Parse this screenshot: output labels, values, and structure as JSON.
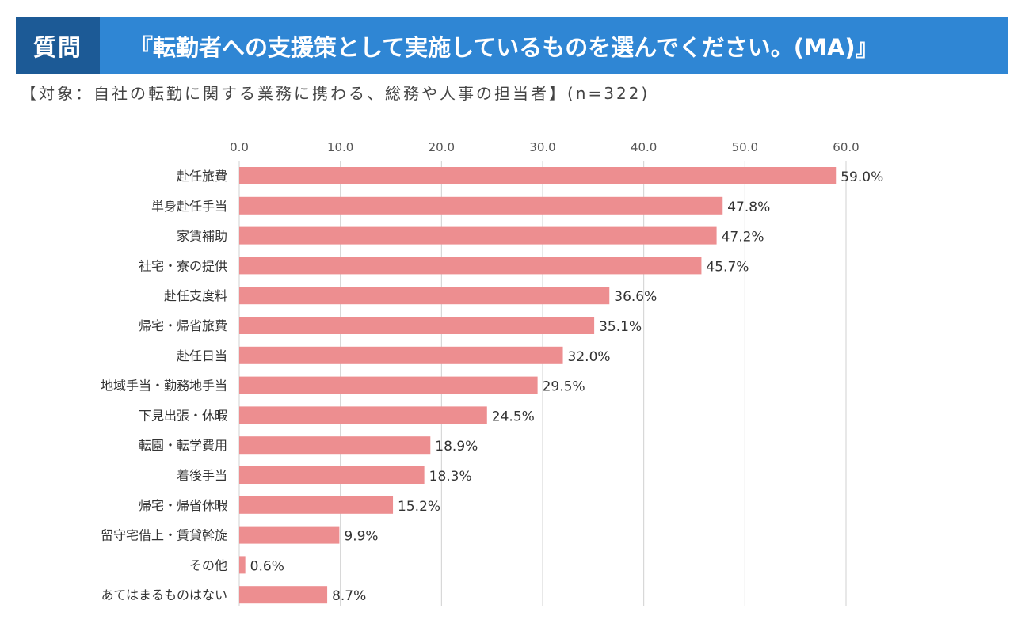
{
  "header": {
    "question_label": "質問",
    "question_text": "『転勤者への支援策として実施しているものを選んでください。(MA)』"
  },
  "subtitle": "【対象：自社の転勤に関する業務に携わる、総務や人事の担当者】(n=322)",
  "colors": {
    "bar": "#ed8e90",
    "header_bg": "#2f86d4",
    "header_label_bg": "#1c5a96",
    "grid": "#d0d0d0"
  },
  "chart_data": {
    "type": "bar",
    "orientation": "horizontal",
    "title": "",
    "xlabel": "",
    "ylabel": "",
    "xlim": [
      0,
      60
    ],
    "tick_values": [
      0,
      10,
      20,
      30,
      40,
      50,
      60
    ],
    "tick_labels": [
      "0.0",
      "10.0",
      "20.0",
      "30.0",
      "40.0",
      "50.0",
      "60.0"
    ],
    "categories": [
      "赴任旅費",
      "単身赴任手当",
      "家賃補助",
      "社宅・寮の提供",
      "赴任支度料",
      "帰宅・帰省旅費",
      "赴任日当",
      "地域手当・勤務地手当",
      "下見出張・休暇",
      "転園・転学費用",
      "着後手当",
      "帰宅・帰省休暇",
      "留守宅借上・賃貸斡旋",
      "その他",
      "あてはまるものはない"
    ],
    "values": [
      59.0,
      47.8,
      47.2,
      45.7,
      36.6,
      35.1,
      32.0,
      29.5,
      24.5,
      18.9,
      18.3,
      15.2,
      9.9,
      0.6,
      8.7
    ],
    "value_labels": [
      "59.0%",
      "47.8%",
      "47.2%",
      "45.7%",
      "36.6%",
      "35.1%",
      "32.0%",
      "29.5%",
      "24.5%",
      "18.9%",
      "18.3%",
      "15.2%",
      "9.9%",
      "0.6%",
      "8.7%"
    ],
    "grid": true
  }
}
